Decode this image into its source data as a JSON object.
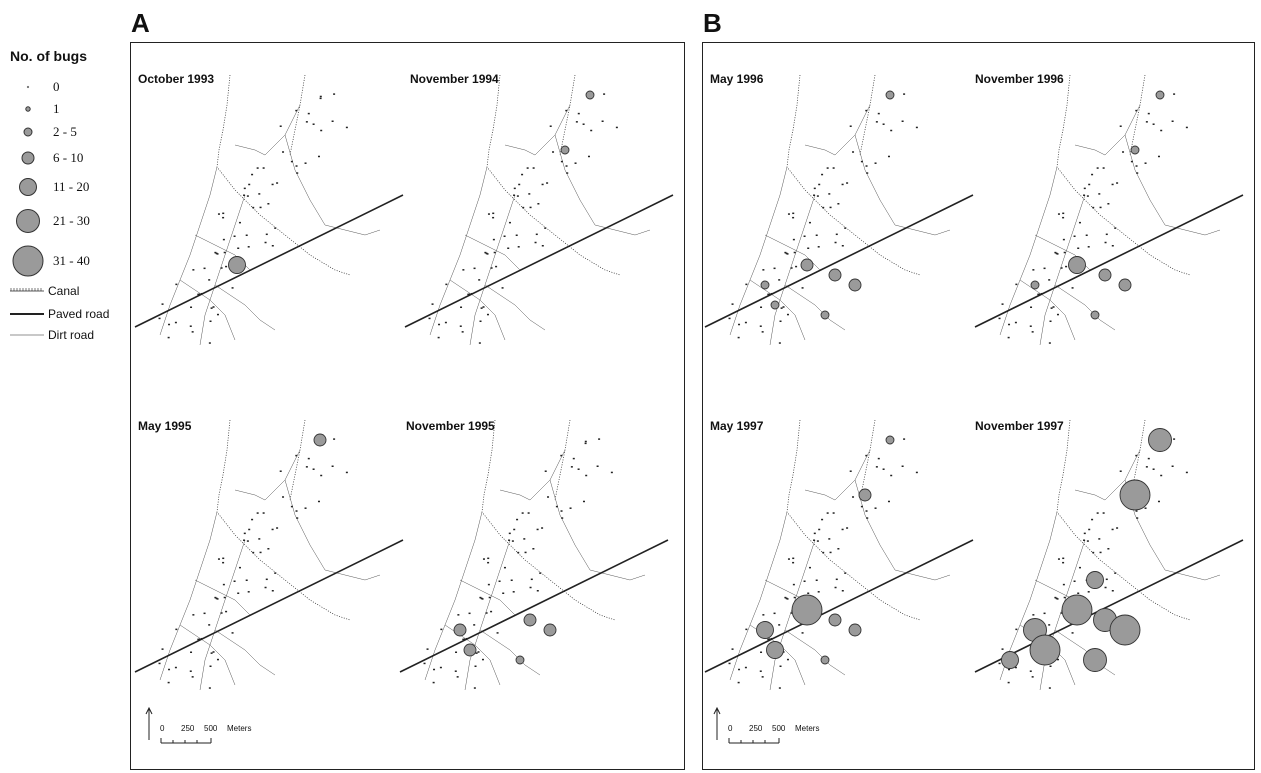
{
  "panels": {
    "A": {
      "label": "A"
    },
    "B": {
      "label": "B"
    }
  },
  "legend": {
    "title": "No. of bugs",
    "classes": [
      {
        "label": "0",
        "max_bugs": 0
      },
      {
        "label": "1",
        "max_bugs": 1
      },
      {
        "label": "2 - 5",
        "max_bugs": 5
      },
      {
        "label": "6 - 10",
        "max_bugs": 10
      },
      {
        "label": "11 - 20",
        "max_bugs": 20
      },
      {
        "label": "21 - 30",
        "max_bugs": 30
      },
      {
        "label": "31 - 40",
        "max_bugs": 40
      }
    ],
    "lines": [
      {
        "label": "Canal",
        "style": "canal"
      },
      {
        "label": "Paved road",
        "style": "paved"
      },
      {
        "label": "Dirt road",
        "style": "dirt"
      }
    ]
  },
  "maps": [
    {
      "title": "October 1993",
      "panel": "A",
      "hotspots": [
        {
          "cls": 4,
          "site": "road-center"
        }
      ]
    },
    {
      "title": "November 1994",
      "panel": "A",
      "hotspots": [
        {
          "cls": 2,
          "site": "north-top"
        },
        {
          "cls": 2,
          "site": "mid-upper"
        }
      ]
    },
    {
      "title": "May 1995",
      "panel": "A",
      "hotspots": [
        {
          "cls": 3,
          "site": "north-top"
        }
      ]
    },
    {
      "title": "November 1995",
      "panel": "A",
      "hotspots": [
        {
          "cls": 3,
          "site": "sw-1"
        },
        {
          "cls": 3,
          "site": "sw-2"
        },
        {
          "cls": 3,
          "site": "se-1"
        },
        {
          "cls": 3,
          "site": "se-2"
        },
        {
          "cls": 2,
          "site": "se-3"
        }
      ]
    },
    {
      "title": "May 1996",
      "panel": "B",
      "hotspots": [
        {
          "cls": 2,
          "site": "north-top"
        },
        {
          "cls": 2,
          "site": "sw-1"
        },
        {
          "cls": 3,
          "site": "road-center"
        },
        {
          "cls": 3,
          "site": "se-1"
        },
        {
          "cls": 3,
          "site": "se-2"
        },
        {
          "cls": 2,
          "site": "se-3"
        },
        {
          "cls": 2,
          "site": "sw-2"
        }
      ]
    },
    {
      "title": "November 1996",
      "panel": "B",
      "hotspots": [
        {
          "cls": 2,
          "site": "north-top"
        },
        {
          "cls": 2,
          "site": "mid-upper"
        },
        {
          "cls": 4,
          "site": "road-center"
        },
        {
          "cls": 3,
          "site": "se-1"
        },
        {
          "cls": 3,
          "site": "se-2"
        },
        {
          "cls": 2,
          "site": "sw-1"
        },
        {
          "cls": 2,
          "site": "se-3"
        }
      ]
    },
    {
      "title": "May 1997",
      "panel": "B",
      "hotspots": [
        {
          "cls": 2,
          "site": "north-top"
        },
        {
          "cls": 3,
          "site": "mid-upper"
        },
        {
          "cls": 6,
          "site": "road-center"
        },
        {
          "cls": 4,
          "site": "sw-1"
        },
        {
          "cls": 4,
          "site": "sw-2"
        },
        {
          "cls": 3,
          "site": "se-1"
        },
        {
          "cls": 3,
          "site": "se-2"
        },
        {
          "cls": 2,
          "site": "se-3"
        }
      ]
    },
    {
      "title": "November 1997",
      "panel": "B",
      "hotspots": [
        {
          "cls": 5,
          "site": "north-top"
        },
        {
          "cls": 6,
          "site": "mid-upper"
        },
        {
          "cls": 5,
          "site": "sw-1"
        },
        {
          "cls": 6,
          "site": "sw-2"
        },
        {
          "cls": 6,
          "site": "road-center"
        },
        {
          "cls": 5,
          "site": "se-1"
        },
        {
          "cls": 6,
          "site": "se-2"
        },
        {
          "cls": 5,
          "site": "se-3"
        },
        {
          "cls": 4,
          "site": "far-sw"
        },
        {
          "cls": 4,
          "site": "mid-lower"
        }
      ]
    }
  ],
  "scale_bar": {
    "ticks": [
      "0",
      "250",
      "500"
    ],
    "unit": "Meters"
  },
  "colors": {
    "circle_fill": "#9a9a9a",
    "circle_stroke": "#333333",
    "line": "#222222"
  }
}
